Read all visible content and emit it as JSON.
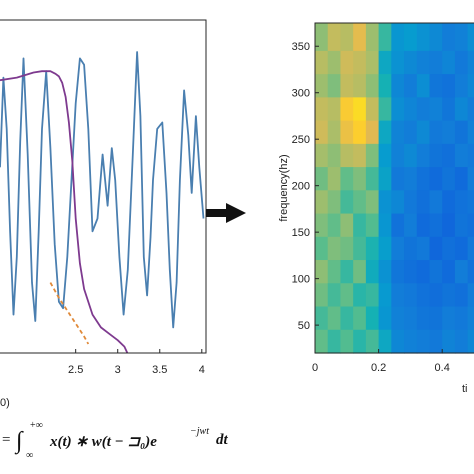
{
  "chart_data": [
    {
      "type": "line",
      "title": "",
      "xlabel": "",
      "ylabel": "",
      "x_ticks": [
        "2.5",
        "3",
        "3.5",
        "4"
      ],
      "xlim": [
        1.6,
        4.05
      ],
      "ylim": [
        -1.25,
        1.35
      ],
      "grid": false,
      "series": [
        {
          "color": "#4a7fb0",
          "x": [
            1.6,
            1.64,
            1.68,
            1.72,
            1.76,
            1.8,
            1.84,
            1.88,
            1.93,
            1.98,
            2.02,
            2.06,
            2.1,
            2.15,
            2.2,
            2.25,
            2.3,
            2.35,
            2.4,
            2.45,
            2.5,
            2.55,
            2.6,
            2.65,
            2.7,
            2.76,
            2.82,
            2.88,
            2.93,
            2.97,
            3.02,
            3.07,
            3.12,
            3.18,
            3.23,
            3.27,
            3.31,
            3.35,
            3.39,
            3.42,
            3.47,
            3.53,
            3.58,
            3.62,
            3.66,
            3.7,
            3.74,
            3.79,
            3.84,
            3.88,
            3.93,
            3.97,
            4.02
          ],
          "y": [
            0.2,
            0.9,
            0.5,
            -0.3,
            -0.95,
            -0.5,
            0.4,
            1.05,
            0.3,
            -0.7,
            -1.0,
            -0.3,
            0.5,
            0.95,
            0.35,
            -0.4,
            -0.85,
            -0.9,
            -0.5,
            0.1,
            0.7,
            1.05,
            1.0,
            0.5,
            -0.3,
            -0.2,
            0.3,
            -0.1,
            0.35,
            0.1,
            -0.5,
            -0.95,
            -0.6,
            0.3,
            1.1,
            0.6,
            -0.5,
            -0.8,
            -0.35,
            0.1,
            0.5,
            0.55,
            0.0,
            -0.6,
            -1.05,
            -0.7,
            0.1,
            0.8,
            0.45,
            0.0,
            0.6,
            0.2,
            -0.2
          ]
        },
        {
          "color": "#7e3a8f",
          "x": [
            1.6,
            1.8,
            2.0,
            2.1,
            2.2,
            2.26,
            2.3,
            2.34,
            2.38,
            2.42,
            2.46,
            2.5,
            2.55,
            2.6,
            2.7,
            2.8,
            2.9,
            3.0,
            3.08,
            3.15
          ],
          "y": [
            0.88,
            0.9,
            0.94,
            0.95,
            0.95,
            0.93,
            0.91,
            0.86,
            0.75,
            0.55,
            0.25,
            -0.2,
            -0.55,
            -0.75,
            -0.95,
            -1.05,
            -1.1,
            -1.15,
            -1.2,
            -1.3
          ]
        },
        {
          "color": "#e08a3a",
          "dashed": true,
          "x": [
            2.2,
            2.3,
            2.4,
            2.5,
            2.6,
            2.65
          ],
          "y": [
            -0.7,
            -0.82,
            -0.92,
            -1.02,
            -1.12,
            -1.18
          ]
        }
      ]
    },
    {
      "type": "heatmap",
      "title": "",
      "xlabel": "ti",
      "ylabel": "frequency(hz)",
      "x_ticks": [
        "0",
        "0.2",
        "0.4"
      ],
      "y_ticks": [
        "50",
        "100",
        "150",
        "200",
        "250",
        "300",
        "350"
      ],
      "xlim": [
        0,
        0.5
      ],
      "ylim": [
        20,
        375
      ],
      "colormap": "parula",
      "grid": false,
      "x_edges": [
        0.0,
        0.04,
        0.08,
        0.12,
        0.16,
        0.2,
        0.24,
        0.28,
        0.32,
        0.36,
        0.4,
        0.44,
        0.48,
        0.5
      ],
      "y_edges": [
        20,
        45,
        70,
        95,
        120,
        145,
        170,
        195,
        220,
        245,
        270,
        295,
        320,
        345,
        375
      ],
      "z_rows_top_to_bottom": [
        [
          0.72,
          0.8,
          0.78,
          0.86,
          0.74,
          0.6,
          0.42,
          0.45,
          0.4,
          0.36,
          0.3,
          0.32,
          0.38
        ],
        [
          0.78,
          0.74,
          0.82,
          0.8,
          0.76,
          0.5,
          0.4,
          0.36,
          0.32,
          0.3,
          0.34,
          0.28,
          0.33
        ],
        [
          0.74,
          0.7,
          0.8,
          0.78,
          0.72,
          0.55,
          0.35,
          0.3,
          0.38,
          0.27,
          0.25,
          0.3,
          0.35
        ],
        [
          0.8,
          0.78,
          0.92,
          0.95,
          0.8,
          0.6,
          0.38,
          0.34,
          0.3,
          0.32,
          0.27,
          0.35,
          0.3
        ],
        [
          0.82,
          0.76,
          0.88,
          0.93,
          0.85,
          0.5,
          0.33,
          0.3,
          0.36,
          0.28,
          0.3,
          0.26,
          0.32
        ],
        [
          0.75,
          0.72,
          0.78,
          0.8,
          0.7,
          0.45,
          0.32,
          0.36,
          0.3,
          0.26,
          0.24,
          0.3,
          0.28
        ],
        [
          0.68,
          0.74,
          0.66,
          0.7,
          0.62,
          0.48,
          0.28,
          0.3,
          0.25,
          0.22,
          0.26,
          0.22,
          0.3
        ],
        [
          0.74,
          0.7,
          0.62,
          0.66,
          0.7,
          0.4,
          0.35,
          0.28,
          0.24,
          0.28,
          0.22,
          0.25,
          0.27
        ],
        [
          0.7,
          0.66,
          0.72,
          0.6,
          0.64,
          0.42,
          0.25,
          0.3,
          0.22,
          0.24,
          0.2,
          0.26,
          0.24
        ],
        [
          0.65,
          0.7,
          0.68,
          0.62,
          0.56,
          0.46,
          0.3,
          0.26,
          0.28,
          0.2,
          0.24,
          0.22,
          0.28
        ],
        [
          0.72,
          0.66,
          0.6,
          0.68,
          0.52,
          0.4,
          0.27,
          0.24,
          0.22,
          0.26,
          0.22,
          0.3,
          0.25
        ],
        [
          0.68,
          0.62,
          0.66,
          0.58,
          0.6,
          0.44,
          0.3,
          0.28,
          0.25,
          0.23,
          0.26,
          0.24,
          0.3
        ],
        [
          0.62,
          0.66,
          0.6,
          0.64,
          0.55,
          0.42,
          0.32,
          0.3,
          0.27,
          0.26,
          0.3,
          0.28,
          0.32
        ],
        [
          0.66,
          0.6,
          0.64,
          0.58,
          0.62,
          0.5,
          0.35,
          0.32,
          0.3,
          0.28,
          0.33,
          0.3,
          0.35
        ]
      ]
    }
  ],
  "left_partial_label": "0)",
  "formula": {
    "prefix": "=",
    "upper_limit": "+∞",
    "lower_limit": "∞",
    "integrand": "x(t) ∗ w(t − ⊐₀)e",
    "exponent": "−jwt",
    "differential": "dt"
  },
  "colors": {
    "axis": "#262626",
    "arrow": "#111111",
    "line_blue": "#4a7fb0",
    "line_purple": "#7e3a8f",
    "line_orange": "#e08a3a"
  }
}
